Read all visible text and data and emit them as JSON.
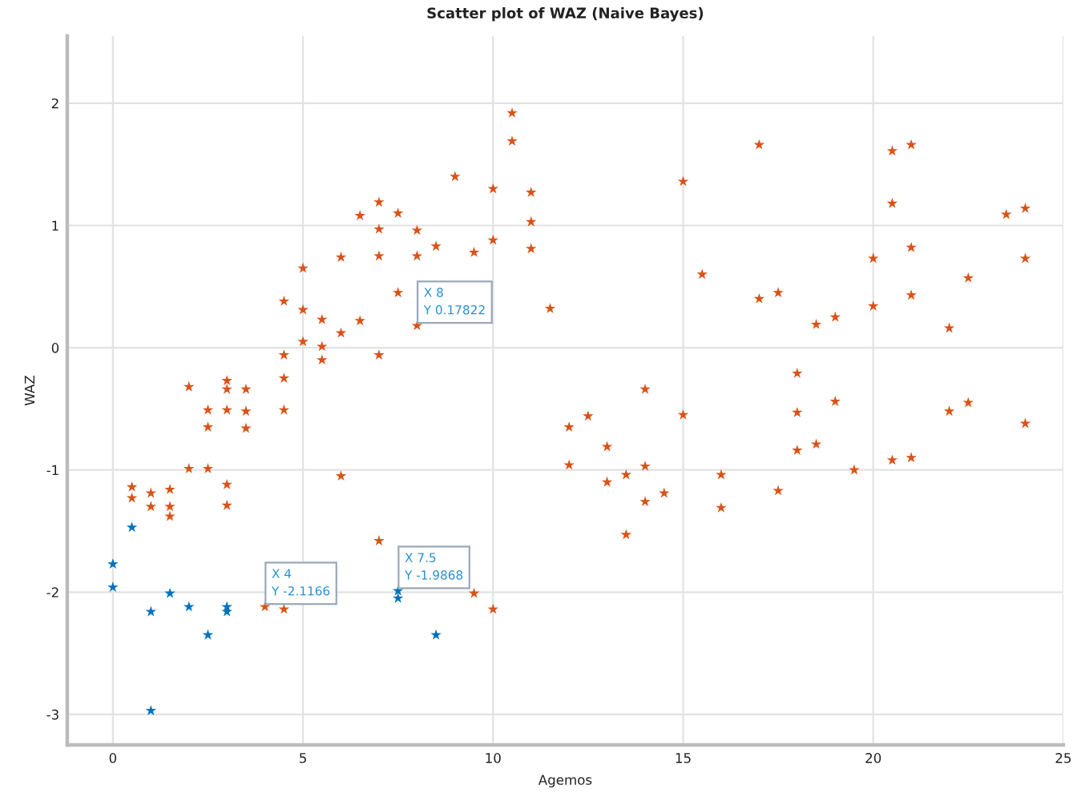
{
  "chart_data": {
    "type": "scatter",
    "title": "Scatter plot of WAZ (Naive Bayes)",
    "xlabel": "Agemos",
    "ylabel": "WAZ",
    "series": [
      {
        "color": "#d95319",
        "x": [
          10.5,
          10.5,
          9,
          10,
          11,
          7,
          6.5,
          7.5,
          7,
          8,
          11,
          10,
          8.5,
          9.5,
          11,
          6,
          7,
          8,
          5,
          7.5,
          4.5,
          5,
          5.5,
          6.5,
          8,
          6,
          5,
          5.5,
          4.5,
          5.5,
          7,
          2,
          3,
          3,
          3.5,
          4.5,
          2.5,
          3,
          3.5,
          4.5,
          2.5,
          3.5,
          2,
          2.5,
          3,
          3,
          6,
          0.5,
          0.5,
          1,
          1,
          1.5,
          1.5,
          1.5,
          7,
          9.5,
          10,
          4,
          4.5,
          17,
          20.5,
          21,
          15,
          20.5,
          23.5,
          24,
          21,
          20,
          24,
          15.5,
          22.5,
          21,
          17,
          17.5,
          20,
          11.5,
          18.5,
          19,
          22,
          18,
          14,
          19,
          12.5,
          12,
          15,
          18,
          22,
          22.5,
          24,
          12,
          13,
          13,
          13.5,
          14,
          14,
          14.5,
          13.5,
          16,
          16,
          17.5,
          18,
          18.5,
          19.5,
          20.5,
          21
        ],
        "values": [
          1.92,
          1.69,
          1.4,
          1.3,
          1.27,
          1.19,
          1.08,
          1.1,
          0.97,
          0.96,
          1.03,
          0.88,
          0.83,
          0.78,
          0.81,
          0.74,
          0.75,
          0.75,
          0.65,
          0.45,
          0.38,
          0.31,
          0.23,
          0.22,
          0.18,
          0.12,
          0.05,
          0.01,
          -0.06,
          -0.1,
          -0.06,
          -0.32,
          -0.27,
          -0.34,
          -0.34,
          -0.25,
          -0.51,
          -0.51,
          -0.52,
          -0.51,
          -0.65,
          -0.66,
          -0.99,
          -0.99,
          -1.12,
          -1.29,
          -1.05,
          -1.14,
          -1.23,
          -1.19,
          -1.3,
          -1.16,
          -1.3,
          -1.38,
          -1.58,
          -2.01,
          -2.14,
          -2.12,
          -2.14,
          1.66,
          1.61,
          1.66,
          1.36,
          1.18,
          1.09,
          1.14,
          0.82,
          0.73,
          0.73,
          0.6,
          0.57,
          0.43,
          0.4,
          0.45,
          0.34,
          0.32,
          0.19,
          0.25,
          0.16,
          -0.21,
          -0.34,
          -0.44,
          -0.56,
          -0.65,
          -0.55,
          -0.53,
          -0.52,
          -0.45,
          -0.62,
          -0.96,
          -0.81,
          -1.1,
          -1.04,
          -0.97,
          -1.26,
          -1.19,
          -1.53,
          -1.04,
          -1.31,
          -1.17,
          -0.84,
          -0.79,
          -1.0,
          -0.92,
          -0.9
        ]
      },
      {
        "color": "#0072bd",
        "x": [
          0,
          0,
          0.5,
          1,
          1.5,
          2,
          3,
          3,
          2.5,
          1,
          7.5,
          7.5,
          8.5
        ],
        "values": [
          -1.77,
          -1.96,
          -1.47,
          -2.16,
          -2.01,
          -2.12,
          -2.12,
          -2.16,
          -2.35,
          -2.97,
          -1.99,
          -2.05,
          -2.35
        ]
      }
    ],
    "annotations": [
      {
        "text": "X 8\nY 0.17822",
        "x": 8,
        "y": 0.18
      },
      {
        "text": "X 4\nY -2.1166",
        "x": 4,
        "y": -2.12
      },
      {
        "text": "X 7.5\nY -1.9868",
        "x": 7.5,
        "y": -1.99
      }
    ],
    "xlim": [
      -1.2,
      25
    ],
    "ylim": [
      -3.25,
      2.55
    ],
    "xticks": [
      0,
      5,
      10,
      15,
      20,
      25
    ],
    "yticks": [
      -3,
      -2,
      -1,
      0,
      1,
      2
    ],
    "grid": true,
    "marker": "star"
  }
}
